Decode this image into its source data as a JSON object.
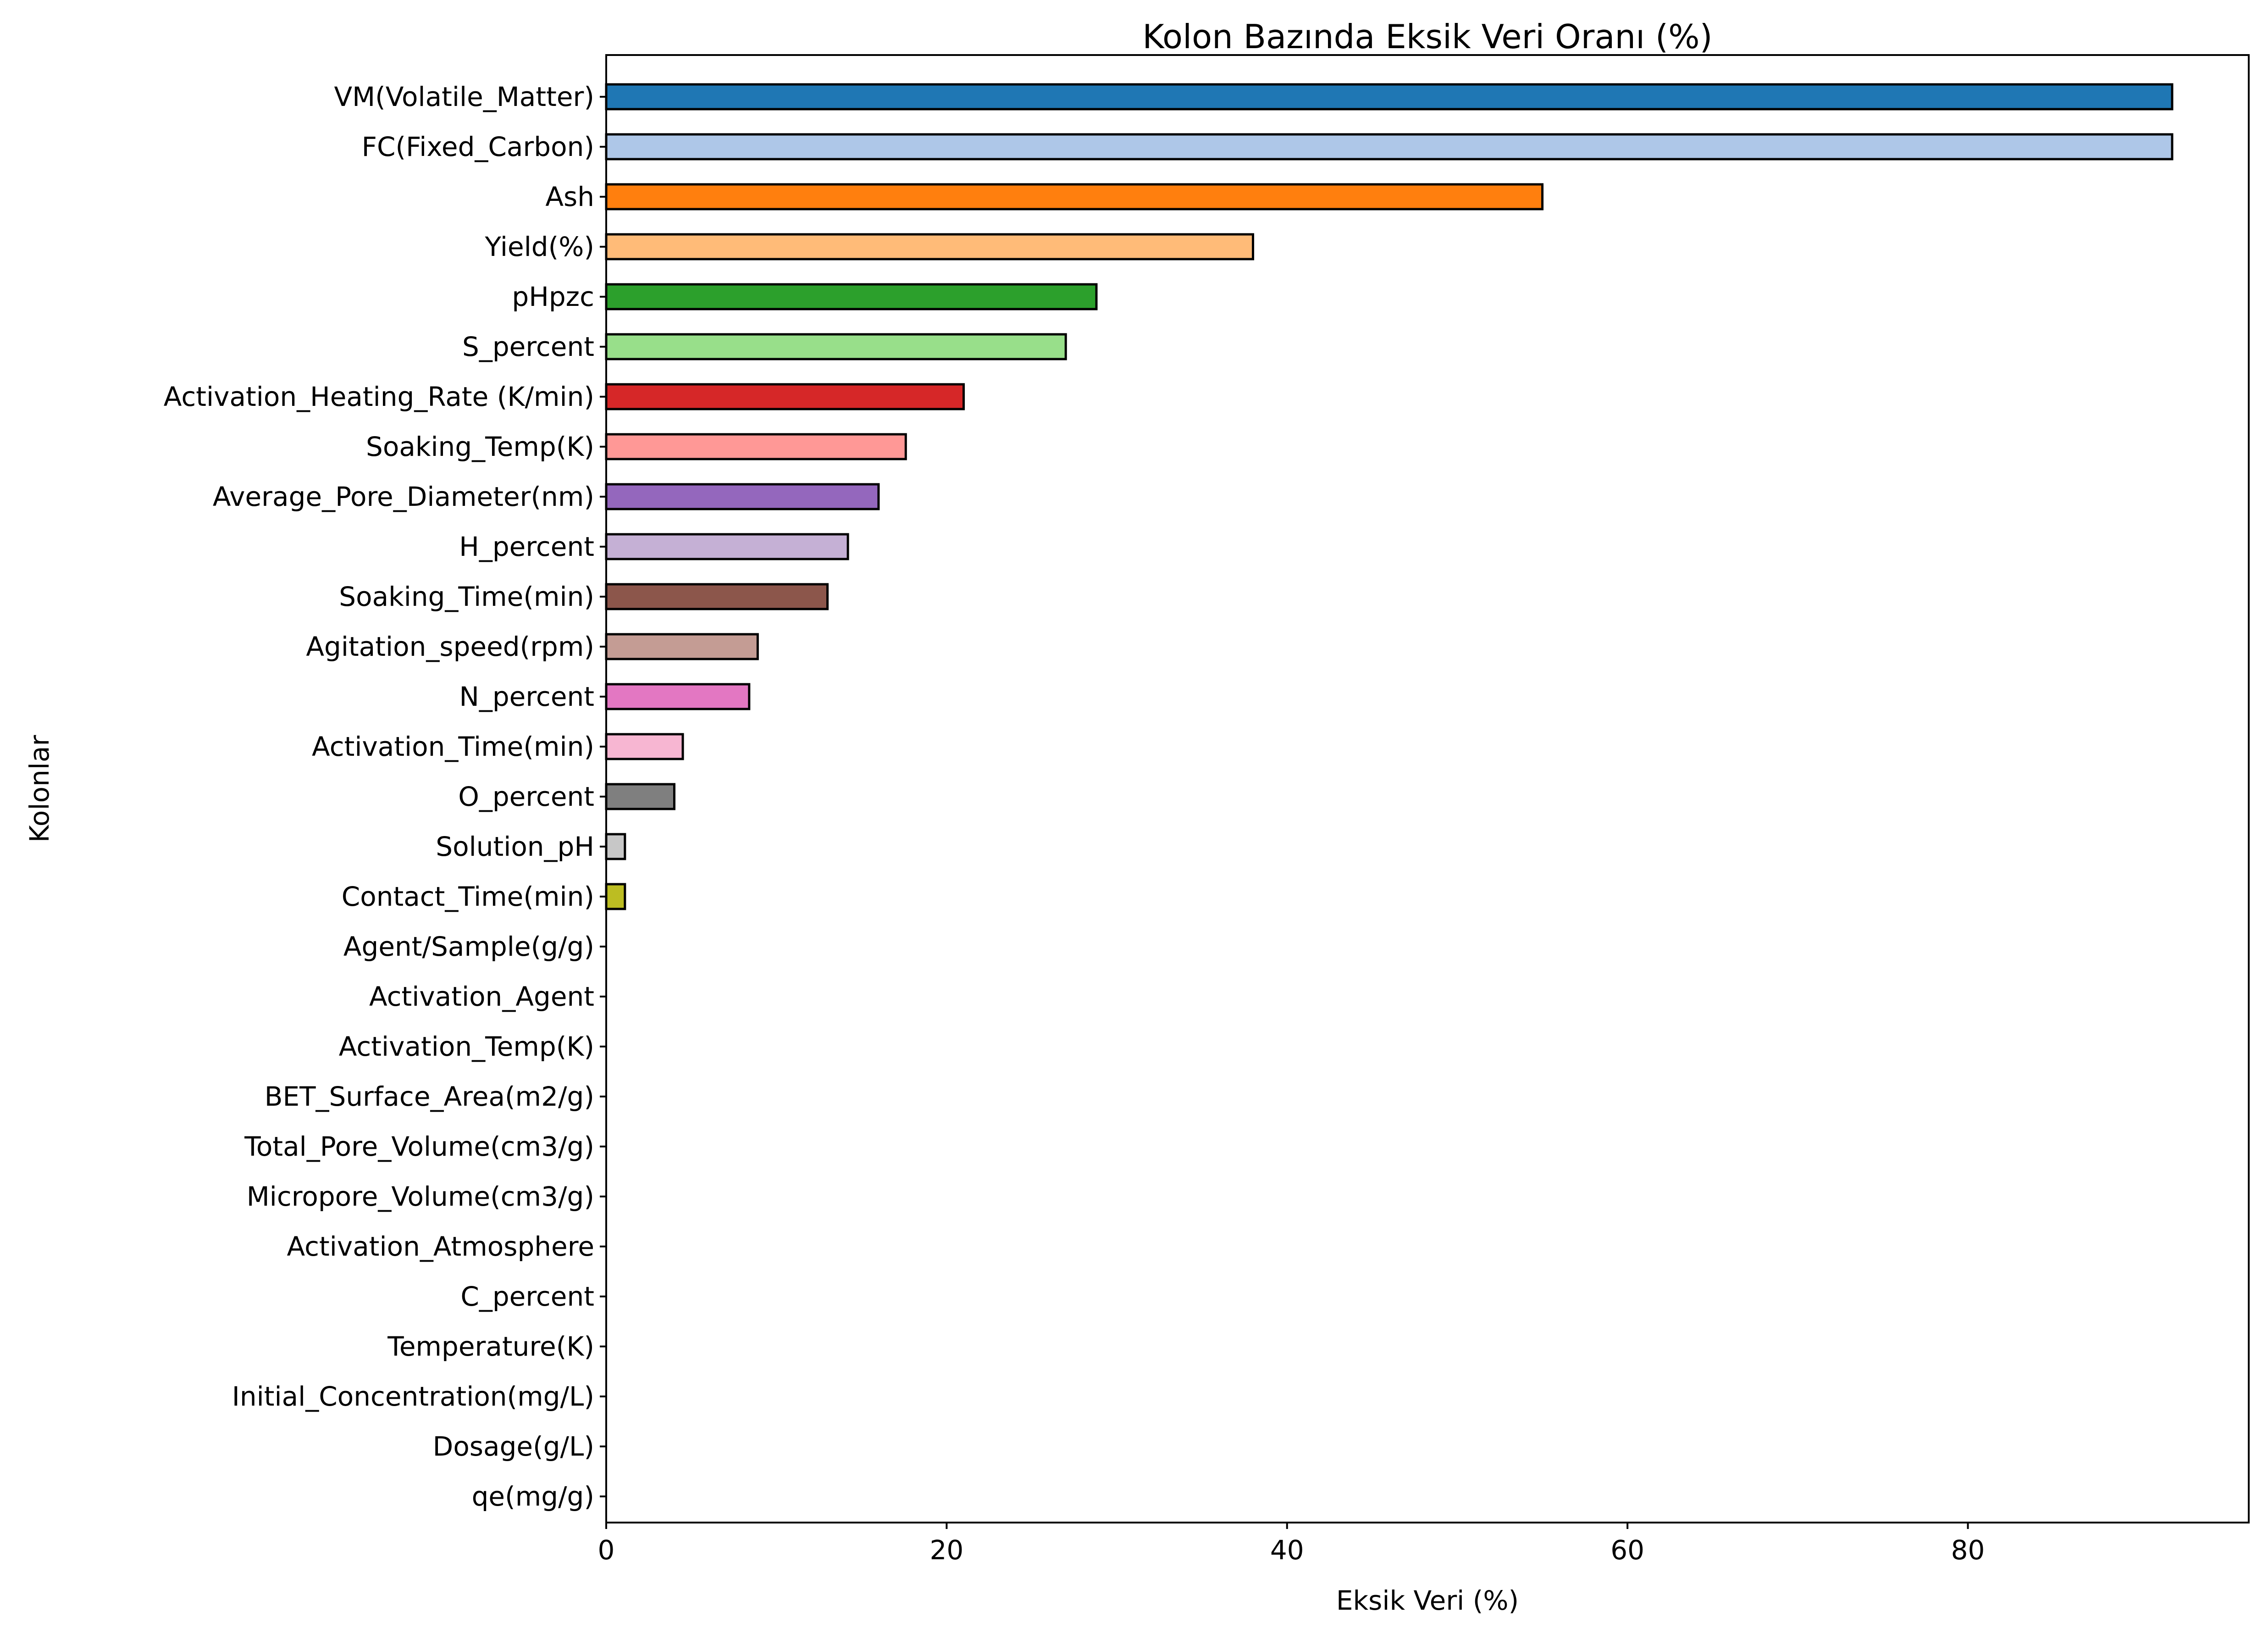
{
  "chart_data": {
    "type": "bar",
    "orientation": "horizontal",
    "title": "Kolon Bazında Eksik Veri Oranı (%)",
    "xlabel": "Eksik Veri (%)",
    "ylabel": "Kolonlar",
    "xlim": [
      0,
      96.5
    ],
    "xticks": [
      0,
      20,
      40,
      60,
      80
    ],
    "grid": false,
    "bar_edge_color": "#000000",
    "categories": [
      "VM(Volatile_Matter)",
      "FC(Fixed_Carbon)",
      "Ash",
      "Yield(%)",
      "pHpzc",
      "S_percent",
      "Activation_Heating_Rate (K/min)",
      "Soaking_Temp(K)",
      "Average_Pore_Diameter(nm)",
      "H_percent",
      "Soaking_Time(min)",
      "Agitation_speed(rpm)",
      "N_percent",
      "Activation_Time(min)",
      "O_percent",
      "Solution_pH",
      "Contact_Time(min)",
      "Agent/Sample(g/g)",
      "Activation_Agent",
      "Activation_Temp(K)",
      "BET_Surface_Area(m2/g)",
      "Total_Pore_Volume(cm3/g)",
      "Micropore_Volume(cm3/g)",
      "Activation_Atmosphere",
      "C_percent",
      "Temperature(K)",
      "Initial_Concentration(mg/L)",
      "Dosage(g/L)",
      "qe(mg/g)"
    ],
    "values": [
      92.0,
      92.0,
      55.0,
      38.0,
      28.8,
      27.0,
      21.0,
      17.6,
      16.0,
      14.2,
      13.0,
      8.9,
      8.4,
      4.5,
      4.0,
      1.1,
      1.1,
      0,
      0,
      0,
      0,
      0,
      0,
      0,
      0,
      0,
      0,
      0,
      0
    ],
    "colors": [
      "#1f77b4",
      "#aec7e8",
      "#ff7f0e",
      "#ffbb78",
      "#2ca02c",
      "#98df8a",
      "#d62728",
      "#ff9896",
      "#9467bd",
      "#c5b0d5",
      "#8c564b",
      "#c49c94",
      "#e377c2",
      "#f7b6d2",
      "#7f7f7f",
      "#c7c7c7",
      "#bcbd22",
      "#dbdb8d",
      "#17becf",
      "#9edae5",
      "#1f77b4",
      "#aec7e8",
      "#ff7f0e",
      "#ffbb78",
      "#2ca02c",
      "#98df8a",
      "#d62728",
      "#ff9896",
      "#9467bd"
    ]
  }
}
